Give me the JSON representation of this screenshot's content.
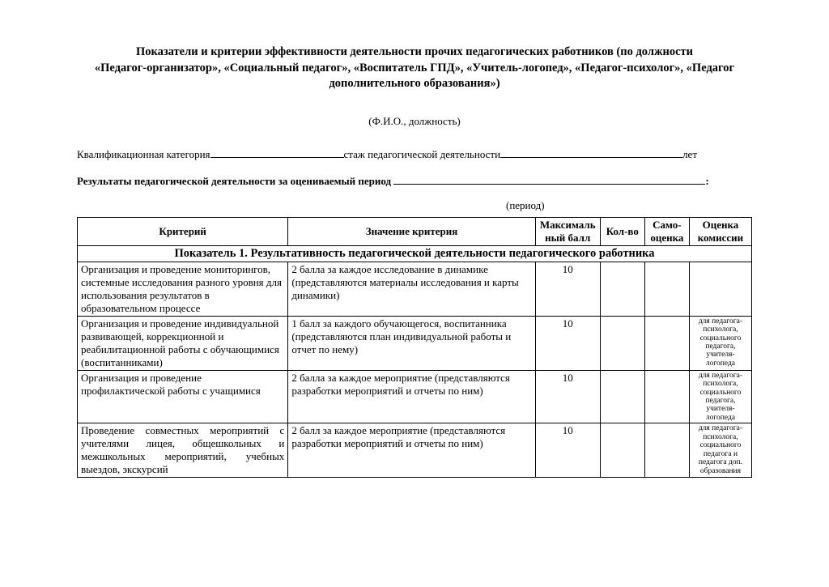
{
  "title": {
    "line1": "Показатели и критерии эффективности деятельности  прочих педагогических работников (по должности",
    "line2": "«Педагог-организатор», «Социальный педагог», «Воспитатель ГПД», «Учитель-логопед», «Педагог-психолог»,  «Педагог",
    "line3": "дополнительного образования»)"
  },
  "fio_label": "(Ф.И.О., должность)",
  "qual_category_label": "Квалификационная категория",
  "experience_label": "стаж педагогической деятельности",
  "years_suffix": "лет",
  "results_label": "Результаты педагогической деятельности за оцениваемый период ",
  "period_label": "(период)",
  "table": {
    "headers": {
      "criterion": "Критерий",
      "value": "Значение критерия",
      "max": "Максималь\nный балл",
      "count": "Кол-во",
      "self": "Само-\nоценка",
      "committee": "Оценка\nкомиссии"
    },
    "section_title": "Показатель 1. Результативность педагогической деятельности педагогического работника",
    "rows": [
      {
        "criterion": "Организация и проведение мониторингов, системные исследования разного уровня для использования результатов в образовательном процессе",
        "value": "2 балла за каждое исследование в динамике (представляются материалы исследования и карты динамики)",
        "max": "10",
        "note": ""
      },
      {
        "criterion": "Организация и проведение индивидуальной развивающей, коррекционной  и реабилитационной работы с обучающимися (воспитанниками)",
        "value": "1 балл за каждого обучающегося, воспитанника (представляются план индивидуальной работы и отчет по нему)",
        "max": "10",
        "note": "для педагога-психолога, социального педагога, учителя-логопеда"
      },
      {
        "criterion": "Организация и проведение профилактической работы с учащимися",
        "value": "2 балла за каждое мероприятие (представляются разработки мероприятий и отчеты по ним)",
        "max": "10",
        "note": "для педагога-психолога, социального педагога, учителя-логопеда"
      },
      {
        "criterion": "Проведение совместных мероприятий с учителями лицея, общешкольных и межшкольных мероприятий, учебных выездов, экскурсий",
        "criterion_justify": true,
        "value": "2 балл за каждое мероприятие (представляются разработки мероприятий и отчеты по ним)",
        "max": "10",
        "note": "для педагога-психолога, социального педагога и педагога доп. образования"
      }
    ]
  }
}
